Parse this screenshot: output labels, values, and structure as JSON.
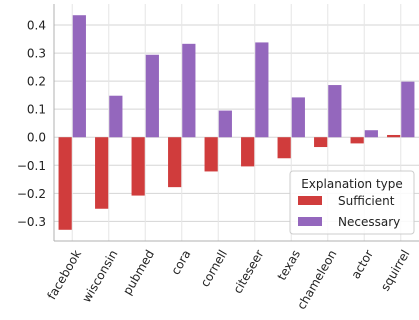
{
  "chart_data": {
    "type": "bar",
    "categories": [
      "facebook",
      "wisconsin",
      "pubmed",
      "cora",
      "cornell",
      "citeseer",
      "texas",
      "chameleon",
      "actor",
      "squirrel"
    ],
    "series": [
      {
        "name": "Sufficient",
        "color": "#d03c3c",
        "values": [
          -0.33,
          -0.255,
          -0.208,
          -0.178,
          -0.122,
          -0.104,
          -0.075,
          -0.035,
          -0.022,
          0.008
        ]
      },
      {
        "name": "Necessary",
        "color": "#9467bd",
        "values": [
          0.435,
          0.148,
          0.294,
          0.333,
          0.095,
          0.338,
          0.142,
          0.186,
          0.025,
          0.198
        ]
      }
    ],
    "ylim": [
      -0.37,
      0.475
    ],
    "yticks": [
      -0.3,
      -0.2,
      -0.1,
      0.0,
      0.1,
      0.2,
      0.3,
      0.4
    ],
    "ytick_labels": [
      "−0.3",
      "−0.2",
      "−0.1",
      "0.0",
      "0.1",
      "0.2",
      "0.3",
      "0.4"
    ],
    "grid": "horizontal",
    "legend": {
      "title": "Explanation type",
      "placement": "lower-right"
    }
  }
}
